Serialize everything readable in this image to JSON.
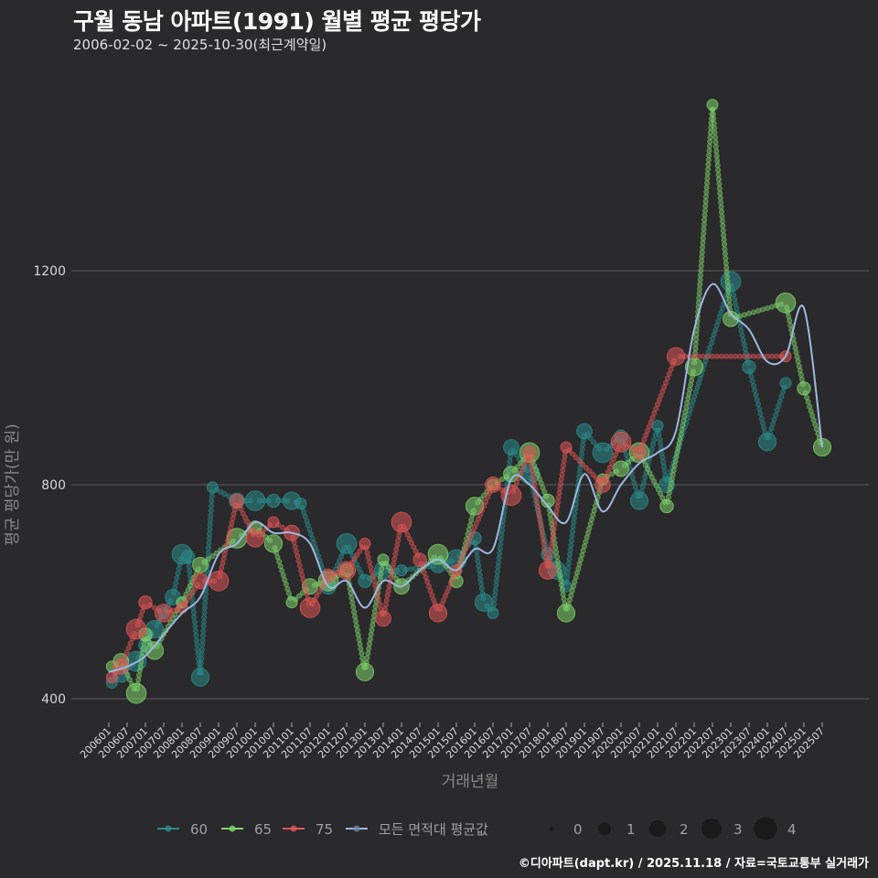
{
  "header": {
    "title": "구월 동남 아파트(1991) 월별 평균 평당가",
    "subtitle": "2006-02-02 ~ 2025-10-30(최근계약일)"
  },
  "footer": "©디아파트(dapt.kr) / 2025.11.18 / 자료=국토교통부 실거래가",
  "colors": {
    "background": "#2a292b",
    "grid": "#4d4d4f",
    "s60": "#2a8c8c",
    "s65": "#7fd36b",
    "s75": "#e05555",
    "avg": "#9db8e0"
  },
  "chart_data": {
    "type": "scatter",
    "title": "구월 동남 아파트(1991) 월별 평균 평당가",
    "subtitle": "2006-02-02 ~ 2025-10-30(최근계약일)",
    "xlabel": "거래년월",
    "ylabel": "평균 평당가(만 원)",
    "yticks": [
      400,
      800,
      1200
    ],
    "ylim": [
      370,
      1500
    ],
    "xticks": [
      "200601",
      "200607",
      "200701",
      "200707",
      "200801",
      "200807",
      "200901",
      "200907",
      "201001",
      "201007",
      "201101",
      "201107",
      "201201",
      "201207",
      "201301",
      "201307",
      "201401",
      "201407",
      "201501",
      "201507",
      "201601",
      "201607",
      "201701",
      "201707",
      "201801",
      "201807",
      "201901",
      "201907",
      "202001",
      "202007",
      "202101",
      "202107",
      "202201",
      "202207",
      "202301",
      "202307",
      "202401",
      "202407",
      "202501",
      "202507"
    ],
    "grid": "horizontal",
    "legend": {
      "position": "bottom",
      "series": [
        "60",
        "65",
        "75",
        "모든 면적대 평균값"
      ],
      "size_title": "",
      "sizes": [
        "0",
        "1",
        "2",
        "3",
        "4"
      ]
    },
    "series": [
      {
        "name": "60",
        "points": [
          [
            "200602",
            430
          ],
          [
            "200605",
            445
          ],
          [
            "200610",
            470
          ],
          [
            "200701",
            500
          ],
          [
            "200704",
            530
          ],
          [
            "200707",
            560
          ],
          [
            "200710",
            590
          ],
          [
            "200801",
            670
          ],
          [
            "200803",
            665
          ],
          [
            "200807",
            440
          ],
          [
            "200811",
            795
          ],
          [
            "200907",
            770
          ],
          [
            "201001",
            770
          ],
          [
            "201007",
            770
          ],
          [
            "201101",
            770
          ],
          [
            "201104",
            765
          ],
          [
            "201201",
            610
          ],
          [
            "201207",
            690
          ],
          [
            "201301",
            620
          ],
          [
            "201307",
            640
          ],
          [
            "201401",
            640
          ],
          [
            "201501",
            650
          ],
          [
            "201507",
            660
          ],
          [
            "201601",
            700
          ],
          [
            "201604",
            580
          ],
          [
            "201607",
            560
          ],
          [
            "201701",
            870
          ],
          [
            "201707",
            820
          ],
          [
            "201801",
            670
          ],
          [
            "201804",
            640
          ],
          [
            "201807",
            610
          ],
          [
            "201901",
            900
          ],
          [
            "201907",
            860
          ],
          [
            "202001",
            890
          ],
          [
            "202007",
            770
          ],
          [
            "202101",
            910
          ],
          [
            "202104",
            800
          ],
          [
            "202301",
            1180
          ],
          [
            "202307",
            1020
          ],
          [
            "202401",
            880
          ],
          [
            "202407",
            990
          ]
        ]
      },
      {
        "name": "65",
        "points": [
          [
            "200602",
            460
          ],
          [
            "200605",
            470
          ],
          [
            "200610",
            410
          ],
          [
            "200701",
            520
          ],
          [
            "200704",
            490
          ],
          [
            "200801",
            580
          ],
          [
            "200807",
            650
          ],
          [
            "200907",
            700
          ],
          [
            "201001",
            720
          ],
          [
            "201007",
            690
          ],
          [
            "201101",
            580
          ],
          [
            "201107",
            610
          ],
          [
            "201201",
            620
          ],
          [
            "201207",
            640
          ],
          [
            "201301",
            450
          ],
          [
            "201307",
            660
          ],
          [
            "201401",
            610
          ],
          [
            "201501",
            670
          ],
          [
            "201507",
            620
          ],
          [
            "201601",
            760
          ],
          [
            "201607",
            800
          ],
          [
            "201701",
            820
          ],
          [
            "201707",
            860
          ],
          [
            "201801",
            770
          ],
          [
            "201807",
            560
          ],
          [
            "201907",
            810
          ],
          [
            "202001",
            830
          ],
          [
            "202007",
            860
          ],
          [
            "202104",
            760
          ],
          [
            "202201",
            1020
          ],
          [
            "202207",
            1510
          ],
          [
            "202301",
            1110
          ],
          [
            "202407",
            1140
          ],
          [
            "202501",
            980
          ],
          [
            "202507",
            870
          ]
        ]
      },
      {
        "name": "75",
        "points": [
          [
            "200602",
            440
          ],
          [
            "200605",
            460
          ],
          [
            "200610",
            530
          ],
          [
            "200701",
            580
          ],
          [
            "200707",
            560
          ],
          [
            "200801",
            570
          ],
          [
            "200807",
            620
          ],
          [
            "200901",
            620
          ],
          [
            "200907",
            770
          ],
          [
            "201001",
            700
          ],
          [
            "201007",
            730
          ],
          [
            "201101",
            710
          ],
          [
            "201107",
            570
          ],
          [
            "201201",
            630
          ],
          [
            "201207",
            640
          ],
          [
            "201301",
            690
          ],
          [
            "201307",
            550
          ],
          [
            "201401",
            730
          ],
          [
            "201407",
            660
          ],
          [
            "201501",
            560
          ],
          [
            "201507",
            640
          ],
          [
            "201607",
            800
          ],
          [
            "201701",
            780
          ],
          [
            "201707",
            860
          ],
          [
            "201801",
            640
          ],
          [
            "201807",
            870
          ],
          [
            "201907",
            800
          ],
          [
            "202001",
            880
          ],
          [
            "202007",
            860
          ],
          [
            "202107",
            1040
          ],
          [
            "202407",
            1040
          ]
        ]
      },
      {
        "name": "모든 면적대 평균값",
        "type": "line",
        "points": [
          [
            "200601",
            450
          ],
          [
            "200607",
            460
          ],
          [
            "200701",
            480
          ],
          [
            "200707",
            520
          ],
          [
            "200801",
            560
          ],
          [
            "200807",
            590
          ],
          [
            "200901",
            670
          ],
          [
            "200907",
            690
          ],
          [
            "201001",
            730
          ],
          [
            "201007",
            710
          ],
          [
            "201101",
            710
          ],
          [
            "201107",
            690
          ],
          [
            "201201",
            610
          ],
          [
            "201207",
            620
          ],
          [
            "201301",
            570
          ],
          [
            "201307",
            620
          ],
          [
            "201401",
            610
          ],
          [
            "201407",
            640
          ],
          [
            "201501",
            660
          ],
          [
            "201507",
            640
          ],
          [
            "201601",
            680
          ],
          [
            "201607",
            680
          ],
          [
            "201701",
            810
          ],
          [
            "201707",
            800
          ],
          [
            "201801",
            760
          ],
          [
            "201807",
            730
          ],
          [
            "201901",
            820
          ],
          [
            "201907",
            750
          ],
          [
            "202001",
            800
          ],
          [
            "202007",
            840
          ],
          [
            "202101",
            860
          ],
          [
            "202107",
            900
          ],
          [
            "202201",
            1090
          ],
          [
            "202207",
            1175
          ],
          [
            "202301",
            1120
          ],
          [
            "202307",
            1090
          ],
          [
            "202401",
            1030
          ],
          [
            "202407",
            1040
          ],
          [
            "202501",
            1130
          ],
          [
            "202507",
            870
          ]
        ]
      }
    ]
  }
}
